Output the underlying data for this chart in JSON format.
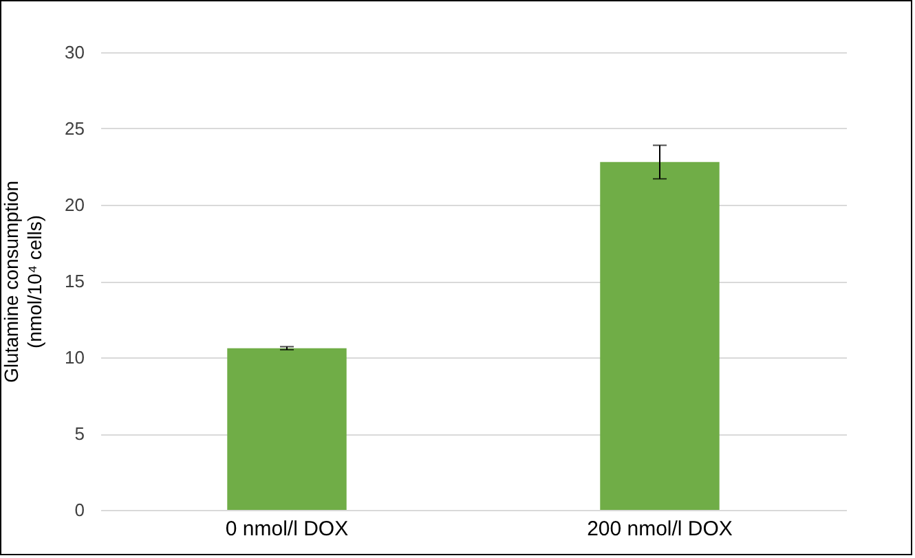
{
  "chart_data": {
    "type": "bar",
    "ylabel": "Glutamine consumption\n(nmol/10⁴ cells)",
    "categories": [
      "0 nmol/l DOX",
      "200 nmol/l DOX"
    ],
    "values": [
      10.6,
      22.8
    ],
    "errors": [
      0.1,
      1.1
    ],
    "color": "#70ad47",
    "ylim": [
      0,
      30
    ],
    "yticks": [
      0,
      5,
      10,
      15,
      20,
      25,
      30
    ],
    "grid": "y"
  }
}
